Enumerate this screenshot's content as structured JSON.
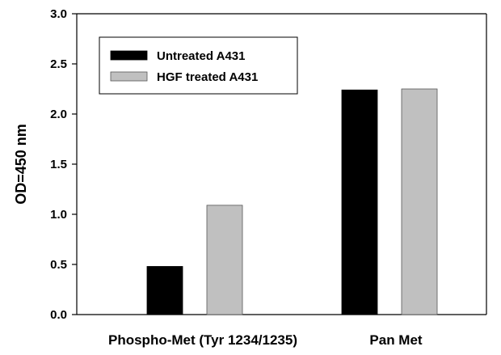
{
  "chart_data": {
    "type": "bar",
    "title": "",
    "xlabel": "",
    "ylabel": "OD=450 nm",
    "ylim": [
      0,
      3.0
    ],
    "yticks": [
      "0.0",
      "0.5",
      "1.0",
      "1.5",
      "2.0",
      "2.5",
      "3.0"
    ],
    "yticks_values": [
      0,
      0.5,
      1.0,
      1.5,
      2.0,
      2.5,
      3.0
    ],
    "categories": [
      "Phospho-Met (Tyr 1234/1235)",
      "Pan Met"
    ],
    "series": [
      {
        "name": "Untreated A431",
        "color": "#000000",
        "values": [
          0.48,
          2.24
        ]
      },
      {
        "name": "HGF treated A431",
        "color": "#c0c0c0",
        "values": [
          1.09,
          2.25
        ]
      }
    ],
    "grid": false,
    "legend_position": "top-left"
  }
}
